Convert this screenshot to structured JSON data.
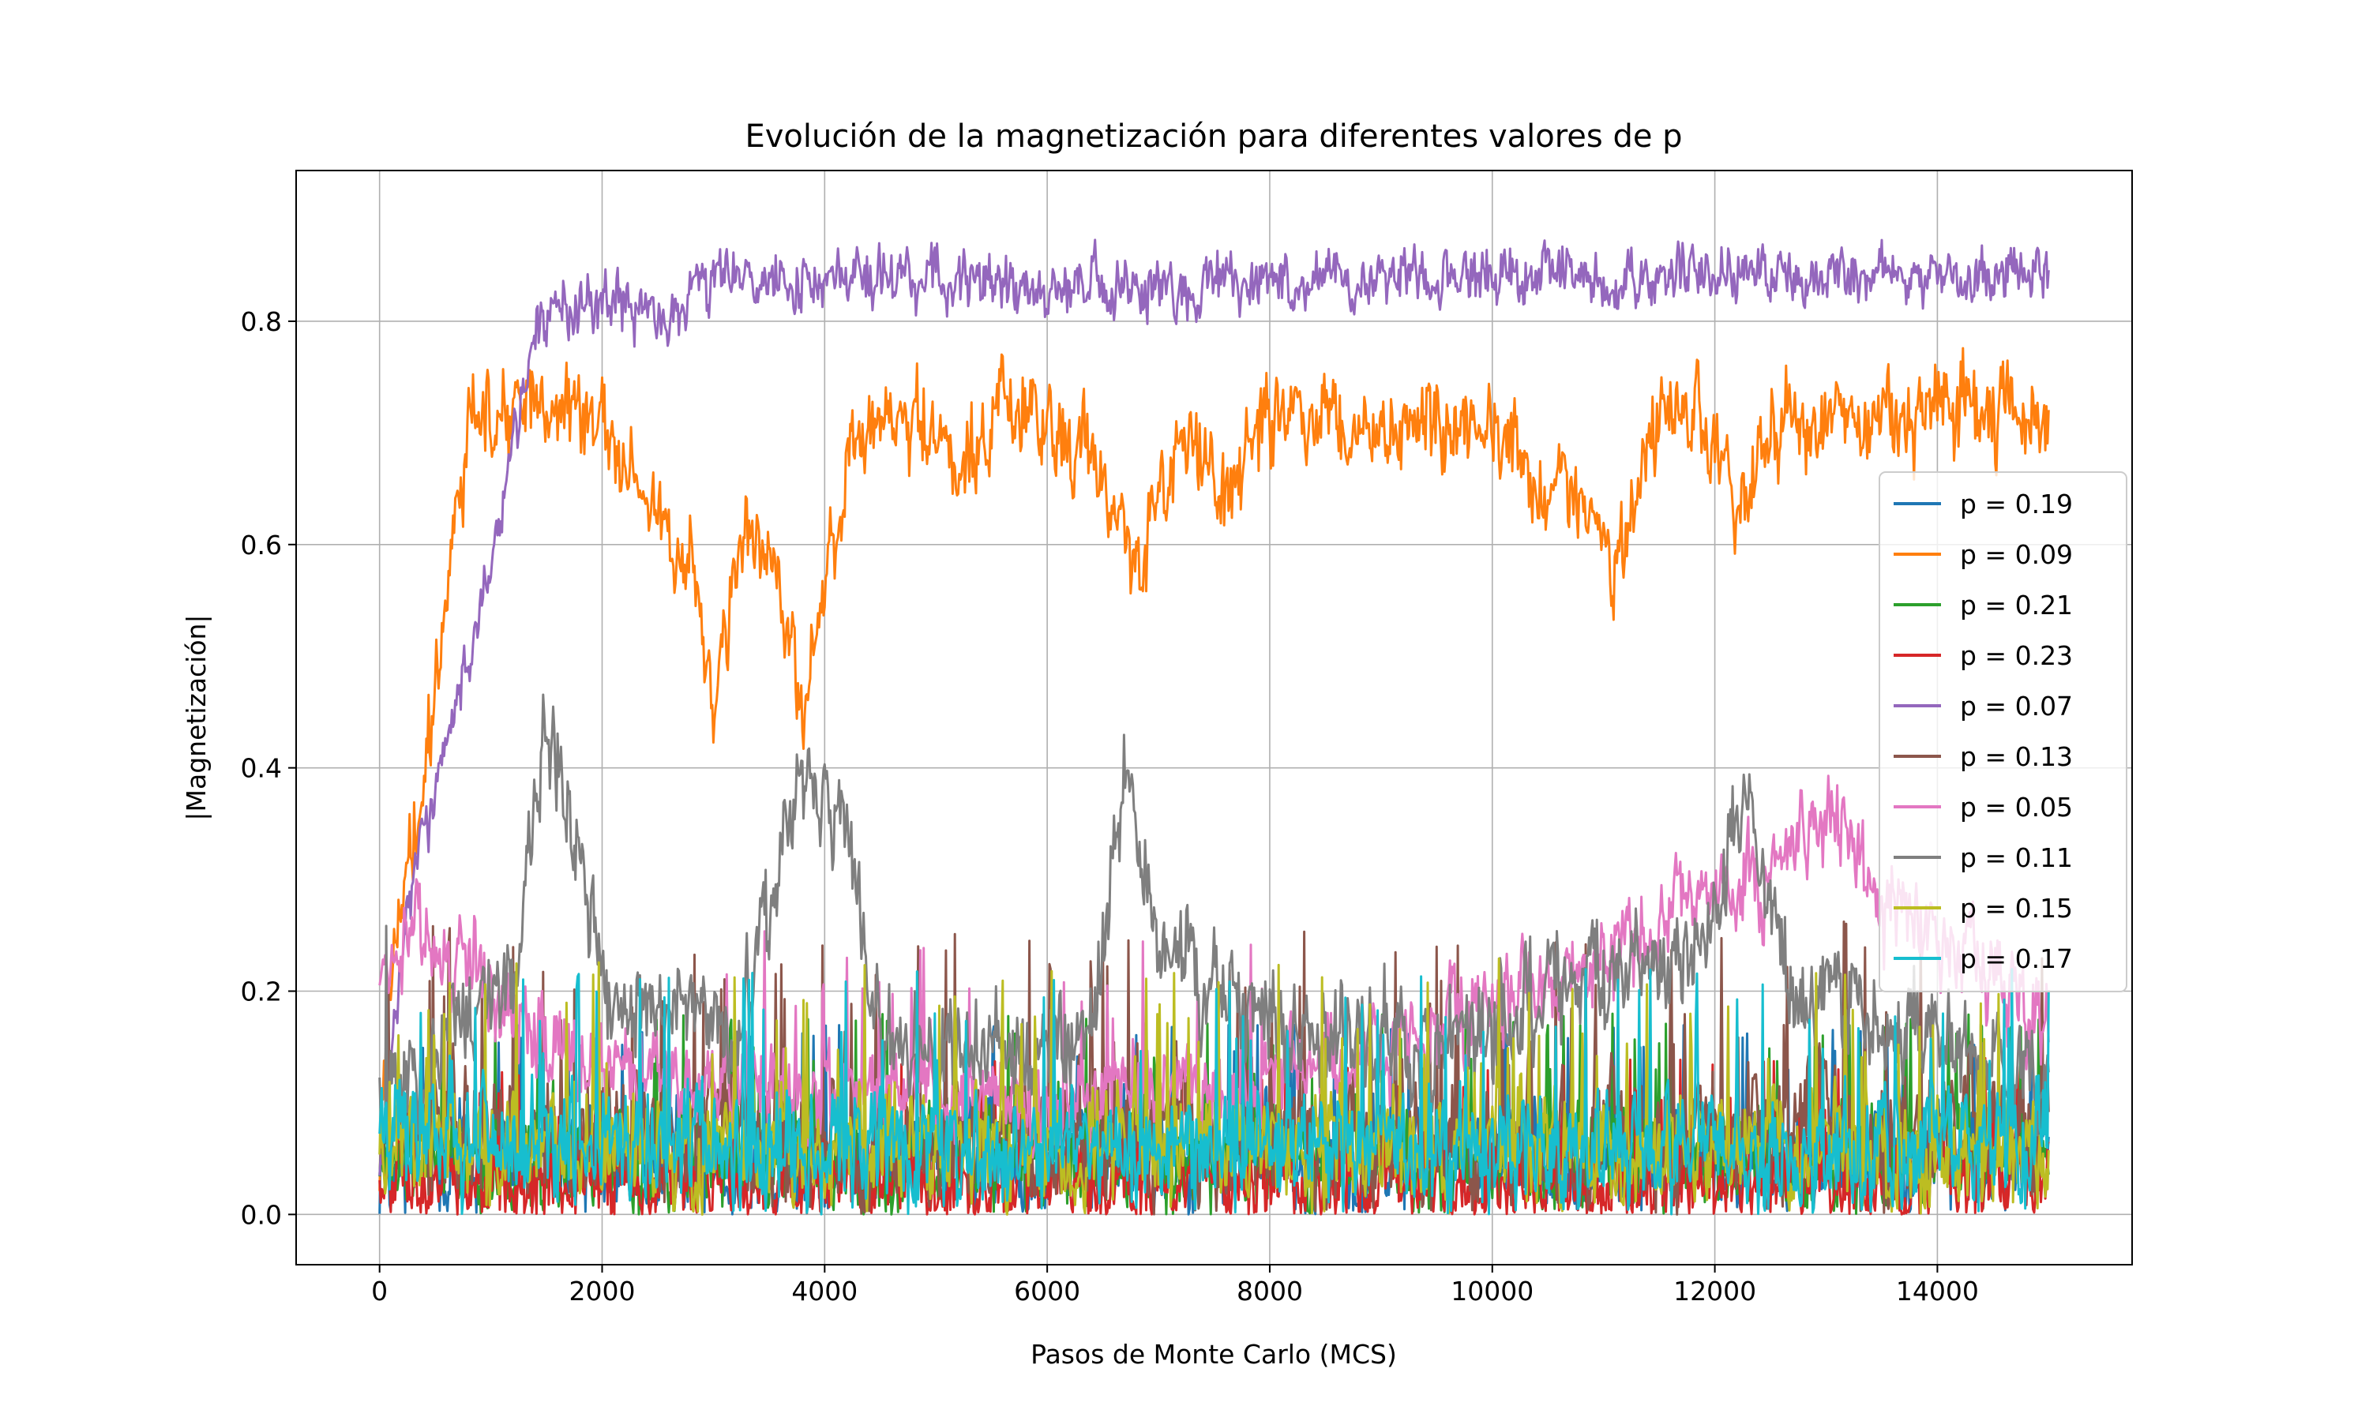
{
  "chart_data": {
    "type": "line",
    "title": "Evolución de la magnetización para diferentes valores de p",
    "xlabel": "Pasos de Monte Carlo (MCS)",
    "ylabel": "|Magnetización|",
    "xlim": [
      -750,
      15750
    ],
    "ylim": [
      -0.045,
      0.935
    ],
    "x_ticks": [
      0,
      2000,
      4000,
      6000,
      8000,
      10000,
      12000,
      14000
    ],
    "y_ticks": [
      0.0,
      0.2,
      0.4,
      0.6,
      0.8
    ],
    "x_tick_labels": [
      "0",
      "2000",
      "4000",
      "6000",
      "8000",
      "10000",
      "12000",
      "14000"
    ],
    "y_tick_labels": [
      "0.0",
      "0.2",
      "0.4",
      "0.6",
      "0.8"
    ],
    "grid": true,
    "legend_position": "center-right",
    "x_range": [
      0,
      15000
    ],
    "series": [
      {
        "name": "p = 0.19",
        "color": "#1f77b4",
        "level": [
          [
            0,
            0.05
          ],
          [
            15000,
            0.05
          ]
        ],
        "noise": 0.045,
        "max": 0.17
      },
      {
        "name": "p = 0.09",
        "color": "#ff7f0e",
        "level": [
          [
            0,
            0.05
          ],
          [
            150,
            0.28
          ],
          [
            400,
            0.4
          ],
          [
            800,
            0.71
          ],
          [
            1500,
            0.73
          ],
          [
            2000,
            0.7
          ],
          [
            2500,
            0.62
          ],
          [
            2800,
            0.58
          ],
          [
            3000,
            0.45
          ],
          [
            3300,
            0.62
          ],
          [
            3600,
            0.55
          ],
          [
            3800,
            0.45
          ],
          [
            4000,
            0.55
          ],
          [
            4200,
            0.68
          ],
          [
            4800,
            0.72
          ],
          [
            5200,
            0.68
          ],
          [
            5800,
            0.72
          ],
          [
            6400,
            0.68
          ],
          [
            6800,
            0.58
          ],
          [
            7200,
            0.7
          ],
          [
            7600,
            0.64
          ],
          [
            8000,
            0.72
          ],
          [
            9000,
            0.7
          ],
          [
            10000,
            0.72
          ],
          [
            10400,
            0.64
          ],
          [
            10800,
            0.66
          ],
          [
            11100,
            0.57
          ],
          [
            11400,
            0.7
          ],
          [
            11800,
            0.72
          ],
          [
            12200,
            0.64
          ],
          [
            12600,
            0.71
          ],
          [
            13000,
            0.7
          ],
          [
            14000,
            0.72
          ],
          [
            15000,
            0.71
          ]
        ],
        "noise": 0.04,
        "max": 0.8
      },
      {
        "name": "p = 0.21",
        "color": "#2ca02c",
        "level": [
          [
            0,
            0.05
          ],
          [
            15000,
            0.05
          ]
        ],
        "noise": 0.045,
        "max": 0.18
      },
      {
        "name": "p = 0.23",
        "color": "#d62728",
        "level": [
          [
            0,
            0.03
          ],
          [
            15000,
            0.03
          ]
        ],
        "noise": 0.035,
        "max": 0.14
      },
      {
        "name": "p = 0.07",
        "color": "#9467bd",
        "level": [
          [
            0,
            0.05
          ],
          [
            300,
            0.3
          ],
          [
            800,
            0.5
          ],
          [
            1100,
            0.63
          ],
          [
            1400,
            0.8
          ],
          [
            2000,
            0.82
          ],
          [
            2600,
            0.8
          ],
          [
            3000,
            0.83
          ],
          [
            4000,
            0.84
          ],
          [
            6000,
            0.83
          ],
          [
            8000,
            0.83
          ],
          [
            10000,
            0.84
          ],
          [
            12000,
            0.84
          ],
          [
            15000,
            0.84
          ]
        ],
        "noise": 0.025,
        "max": 0.89
      },
      {
        "name": "p = 0.13",
        "color": "#8c564b",
        "level": [
          [
            0,
            0.07
          ],
          [
            15000,
            0.07
          ]
        ],
        "noise": 0.055,
        "max": 0.39
      },
      {
        "name": "p = 0.05",
        "color": "#e377c2",
        "level": [
          [
            0,
            0.2
          ],
          [
            300,
            0.27
          ],
          [
            800,
            0.22
          ],
          [
            1500,
            0.15
          ],
          [
            3000,
            0.12
          ],
          [
            6000,
            0.1
          ],
          [
            8000,
            0.12
          ],
          [
            10000,
            0.18
          ],
          [
            10800,
            0.22
          ],
          [
            11800,
            0.28
          ],
          [
            12500,
            0.3
          ],
          [
            13000,
            0.36
          ],
          [
            13500,
            0.28
          ],
          [
            14500,
            0.22
          ],
          [
            15000,
            0.16
          ]
        ],
        "noise": 0.04,
        "max": 0.43
      },
      {
        "name": "p = 0.11",
        "color": "#7f7f7f",
        "level": [
          [
            0,
            0.1
          ],
          [
            1200,
            0.2
          ],
          [
            1500,
            0.45
          ],
          [
            1800,
            0.3
          ],
          [
            2200,
            0.15
          ],
          [
            2600,
            0.2
          ],
          [
            3200,
            0.15
          ],
          [
            3800,
            0.4
          ],
          [
            4200,
            0.35
          ],
          [
            4500,
            0.15
          ],
          [
            6400,
            0.15
          ],
          [
            6700,
            0.4
          ],
          [
            7000,
            0.25
          ],
          [
            7600,
            0.18
          ],
          [
            9500,
            0.15
          ],
          [
            10500,
            0.2
          ],
          [
            11800,
            0.22
          ],
          [
            12300,
            0.38
          ],
          [
            12700,
            0.2
          ],
          [
            15000,
            0.12
          ]
        ],
        "noise": 0.045,
        "max": 0.59
      },
      {
        "name": "p = 0.15",
        "color": "#bcbd22",
        "level": [
          [
            0,
            0.06
          ],
          [
            15000,
            0.06
          ]
        ],
        "noise": 0.05,
        "max": 0.32
      },
      {
        "name": "p = 0.17",
        "color": "#17becf",
        "level": [
          [
            0,
            0.06
          ],
          [
            15000,
            0.06
          ]
        ],
        "noise": 0.05,
        "max": 0.22
      }
    ]
  }
}
